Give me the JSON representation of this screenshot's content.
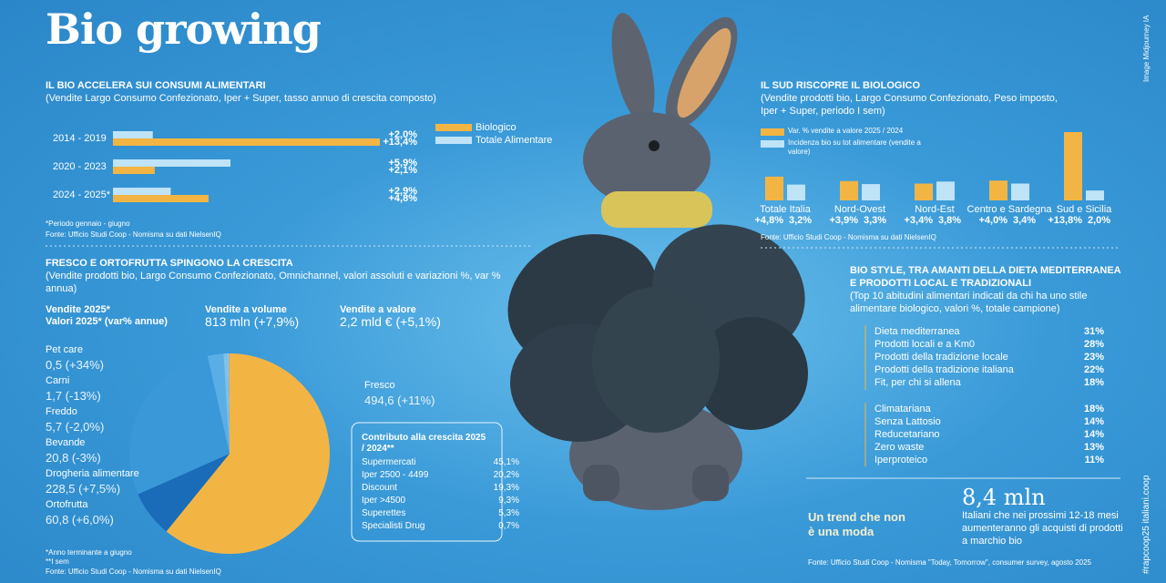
{
  "title": "Bio growing",
  "credit": "Image Midjourney IA",
  "side_tag": "#rapcoop25 italiani.coop",
  "chart_data": [
    {
      "type": "hbar",
      "title": "IL BIO ACCELERA SUI CONSUMI ALIMENTARI",
      "subtitle": "(Vendite Largo Consumo Confezionato, Iper + Super, tasso annuo di crescita composto)",
      "categories": [
        "2014 - 2019",
        "2020 - 2023",
        "2024 - 2025*"
      ],
      "series": [
        {
          "name": "Biologico",
          "color": "#f2b544",
          "values": [
            13.4,
            2.1,
            4.8
          ],
          "value_labels": [
            "+13,4%",
            "+2,1%",
            "+4,8%"
          ]
        },
        {
          "name": "Totale Alimentare",
          "color": "#bfe3f7",
          "values": [
            2.0,
            5.9,
            2.9
          ],
          "value_labels": [
            "+2,0%",
            "+5,9%",
            "+2,9%"
          ]
        }
      ],
      "notes": [
        "*Periodo gennaio - giugno",
        "Fonte: Ufficio Studi Coop - Nomisma su dati NielsenIQ"
      ]
    },
    {
      "type": "bar",
      "title": "IL SUD RISCOPRE IL BIOLOGICO",
      "subtitle": "(Vendite prodotti bio, Largo Consumo Confezionato, Peso imposto, Iper + Super, periodo I sem)",
      "categories": [
        "Totale Italia",
        "Nord-Ovest",
        "Nord-Est",
        "Centro e Sardegna",
        "Sud e Sicilia"
      ],
      "series": [
        {
          "name": "Var. % vendite a valore 2025 / 2024",
          "color": "#f2b544",
          "values": [
            4.8,
            3.9,
            3.4,
            4.0,
            13.8
          ],
          "value_labels": [
            "+4,8%",
            "+3,9%",
            "+3,4%",
            "+4,0%",
            "+13,8%"
          ]
        },
        {
          "name": "Incidenza bio su tot alimentare (vendite a valore)",
          "color": "#bfe3f7",
          "values": [
            3.2,
            3.3,
            3.8,
            3.4,
            2.0
          ],
          "value_labels": [
            "3,2%",
            "3,3%",
            "3,8%",
            "3,4%",
            "2,0%"
          ]
        }
      ],
      "notes": [
        "Fonte: Ufficio Studi Coop - Nomisma su dati NielsenIQ"
      ]
    },
    {
      "type": "pie",
      "title": "FRESCO E ORTOFRUTTA SPINGONO LA CRESCITA",
      "subtitle": "(Vendite prodotti bio, Largo Consumo Confezionato, Omnichannel, valori assoluti e variazioni %, var % annua)",
      "headers": [
        "Vendite 2025*",
        "Valori 2025* (var% annue)",
        "Vendite a volume",
        "813 mln (+7,9%)",
        "Vendite a valore",
        "2,2 mld € (+5,1%)"
      ],
      "categories": [
        "Pet care",
        "Carni",
        "Freddo",
        "Bevande",
        "Drogheria alimentare",
        "Ortofrutta",
        "Fresco"
      ],
      "values": [
        0.5,
        1.7,
        5.7,
        20.8,
        228.5,
        60.8,
        494.6
      ],
      "value_labels": [
        "0,5 (+34%)",
        "1,7 (-13%)",
        "5,7 (-2,0%)",
        "20,8 (-3%)",
        "228,5 (+7,5%)",
        "60,8 (+6,0%)",
        "494,6 (+11%)"
      ],
      "colors": [
        "#e8702a",
        "#9fd0f0",
        "#7ec0ec",
        "#5aaee6",
        "#3a98d8",
        "#1a6cb8",
        "#f2b544"
      ],
      "notes": [
        "*Anno terminante a giugno",
        "**I sem",
        "Fonte: Ufficio Studi Coop - Nomisma su dati NielsenIQ"
      ]
    }
  ],
  "contributo": {
    "title": "Contributo alla crescita 2025 / 2024**",
    "rows": [
      [
        "Supermercati",
        "45,1%"
      ],
      [
        "Iper 2500 - 4499",
        "20,2%"
      ],
      [
        "Discount",
        "19,3%"
      ],
      [
        "Iper >4500",
        "9,3%"
      ],
      [
        "Superettes",
        "5,3%"
      ],
      [
        "Specialisti Drug",
        "0,7%"
      ]
    ]
  },
  "bio_style": {
    "title": "BIO STYLE, TRA AMANTI DELLA DIETA MEDITERRANEA E PRODOTTI LOCAL E TRADIZIONALI",
    "subtitle": "(Top 10 abitudini alimentari indicati da chi ha uno stile alimentare biologico, valori %, totale campione)",
    "groups": [
      [
        [
          "Dieta mediterranea",
          "31%"
        ],
        [
          "Prodotti locali e a Km0",
          "28%"
        ],
        [
          "Prodotti della tradizione locale",
          "23%"
        ],
        [
          "Prodotti della tradizione italiana",
          "22%"
        ],
        [
          "Fit, per chi si allena",
          "18%"
        ]
      ],
      [
        [
          "Climatariana",
          "18%"
        ],
        [
          "Senza Lattosio",
          "14%"
        ],
        [
          "Reducetariano",
          "14%"
        ],
        [
          "Zero waste",
          "13%"
        ],
        [
          "Iperproteico",
          "11%"
        ]
      ]
    ]
  },
  "trend": {
    "heading": "Un trend che non è una moda",
    "figure": "8,4 mln",
    "text": "Italiani che nei prossimi 12-18 mesi aumenteranno gli acquisti di prodotti a marchio bio",
    "source": "Fonte: Ufficio Studi Coop - Nomisma \"Today, Tomorrow\", consumer survey, agosto 2025"
  }
}
